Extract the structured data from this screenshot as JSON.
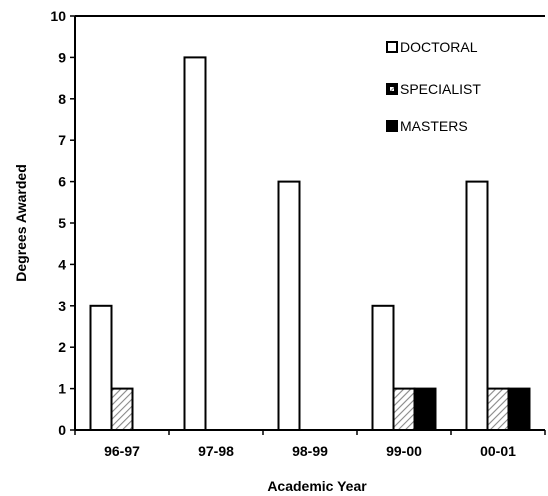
{
  "chart_data": {
    "type": "bar",
    "categories": [
      "96-97",
      "97-98",
      "98-99",
      "99-00",
      "00-01"
    ],
    "series": [
      {
        "name": "DOCTORAL",
        "values": [
          3,
          9,
          6,
          3,
          6
        ],
        "pattern": "white"
      },
      {
        "name": "SPECIALIST",
        "values": [
          1,
          0,
          0,
          1,
          1
        ],
        "pattern": "hatch"
      },
      {
        "name": "MASTERS",
        "values": [
          0,
          0,
          0,
          1,
          1
        ],
        "pattern": "black"
      }
    ],
    "legend_entries": [
      "DOCTORAL",
      "SPECIALIST",
      "MASTERS"
    ],
    "title": "",
    "xlabel": "Academic Year",
    "ylabel": "Degrees Awarded",
    "ylim": [
      0,
      10
    ],
    "yticks": [
      "0",
      "1",
      "2",
      "3",
      "4",
      "5",
      "6",
      "7",
      "8",
      "9",
      "10"
    ],
    "grid": false,
    "legend_position": "top-right",
    "colors": {
      "bar_stroke": "#000000",
      "masters_fill": "#000000",
      "doctoral_fill": "#ffffff",
      "hatch": "#888888"
    }
  }
}
